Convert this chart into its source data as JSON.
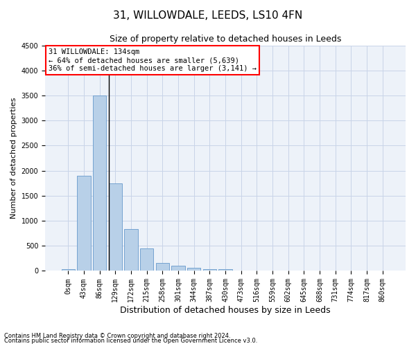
{
  "title": "31, WILLOWDALE, LEEDS, LS10 4FN",
  "subtitle": "Size of property relative to detached houses in Leeds",
  "xlabel": "Distribution of detached houses by size in Leeds",
  "ylabel": "Number of detached properties",
  "footnote1": "Contains HM Land Registry data © Crown copyright and database right 2024.",
  "footnote2": "Contains public sector information licensed under the Open Government Licence v3.0.",
  "bar_labels": [
    "0sqm",
    "43sqm",
    "86sqm",
    "129sqm",
    "172sqm",
    "215sqm",
    "258sqm",
    "301sqm",
    "344sqm",
    "387sqm",
    "430sqm",
    "473sqm",
    "516sqm",
    "559sqm",
    "602sqm",
    "645sqm",
    "688sqm",
    "731sqm",
    "774sqm",
    "817sqm",
    "860sqm"
  ],
  "bar_values": [
    30,
    1900,
    3500,
    1750,
    830,
    450,
    165,
    100,
    60,
    35,
    30,
    0,
    0,
    0,
    0,
    0,
    0,
    0,
    0,
    0,
    0
  ],
  "bar_color": "#b8d0e8",
  "bar_edge_color": "#6699cc",
  "annotation_line1": "31 WILLOWDALE: 134sqm",
  "annotation_line2": "← 64% of detached houses are smaller (5,639)",
  "annotation_line3": "36% of semi-detached houses are larger (3,141) →",
  "vline_bar_index": 3,
  "ylim": [
    0,
    4500
  ],
  "yticks": [
    0,
    500,
    1000,
    1500,
    2000,
    2500,
    3000,
    3500,
    4000,
    4500
  ],
  "bg_color": "#edf2f9",
  "grid_color": "#c8d4e8",
  "title_fontsize": 11,
  "subtitle_fontsize": 9,
  "ylabel_fontsize": 8,
  "xlabel_fontsize": 9,
  "tick_fontsize": 7,
  "annot_fontsize": 7.5,
  "footnote_fontsize": 6
}
